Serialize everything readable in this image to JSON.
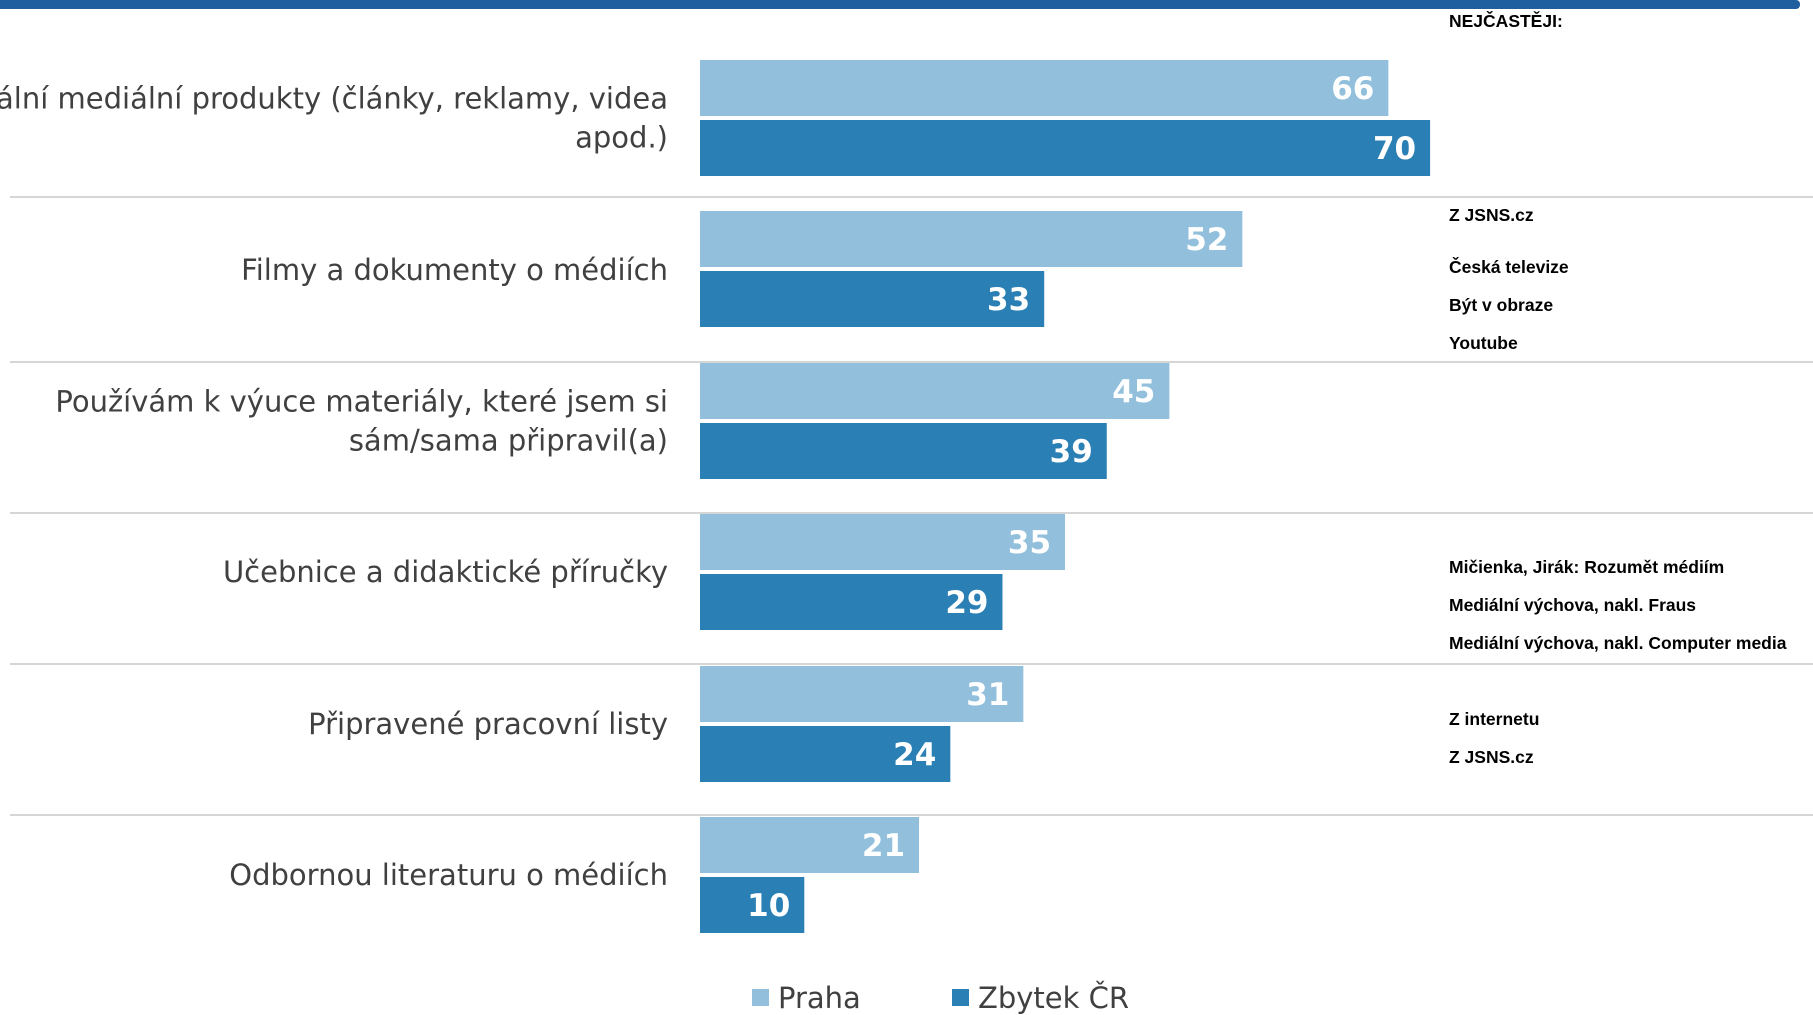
{
  "chart_data": {
    "type": "bar",
    "orientation": "horizontal",
    "categories": [
      "Aktuální mediální produkty (články, reklamy, videa apod.)",
      "Filmy a dokumenty o médiích",
      "Používám k výuce materiály, které jsem si sám/sama připravil(a)",
      "Učebnice a didaktické příručky",
      "Připravené pracovní listy",
      "Odbornou literaturu o médiích"
    ],
    "category_lines": [
      [
        "Aktuální mediální produkty (články, reklamy, videa",
        "apod.)"
      ],
      [
        "Filmy a dokumenty o médiích"
      ],
      [
        "Používám k výuce materiály, které jsem si",
        "sám/sama připravil(a)"
      ],
      [
        "Učebnice a didaktické příručky"
      ],
      [
        "Připravené pracovní listy"
      ],
      [
        "Odbornou literaturu o médiích"
      ]
    ],
    "series": [
      {
        "name": "Praha",
        "color": "#92c0dc",
        "values": [
          66,
          52,
          45,
          35,
          31,
          21
        ]
      },
      {
        "name": "Zbytek ČR",
        "color": "#2a7fb4",
        "values": [
          70,
          33,
          39,
          29,
          24,
          10
        ]
      }
    ],
    "xlim": [
      0,
      70
    ],
    "legend_position": "bottom",
    "grid": false,
    "separator_color": "#c8c8c8"
  },
  "side_notes": {
    "heading": "NEJČASTĚJI:",
    "groups": [
      {
        "category_index": 1,
        "lines": [
          "Z JSNS.cz",
          "Česká televize",
          "Být v obraze",
          "Youtube"
        ]
      },
      {
        "category_index": 3,
        "lines": [
          "Mičienka, Jirák: Rozumět médiím",
          "Mediální výchova, nakl. Fraus",
          "Mediální výchova, nakl. Computer media"
        ]
      },
      {
        "category_index": 4,
        "lines": [
          "Z internetu",
          "Z JSNS.cz"
        ]
      }
    ]
  },
  "colors": {
    "top_rule": "#1f5fa0",
    "category_text": "#404040"
  }
}
